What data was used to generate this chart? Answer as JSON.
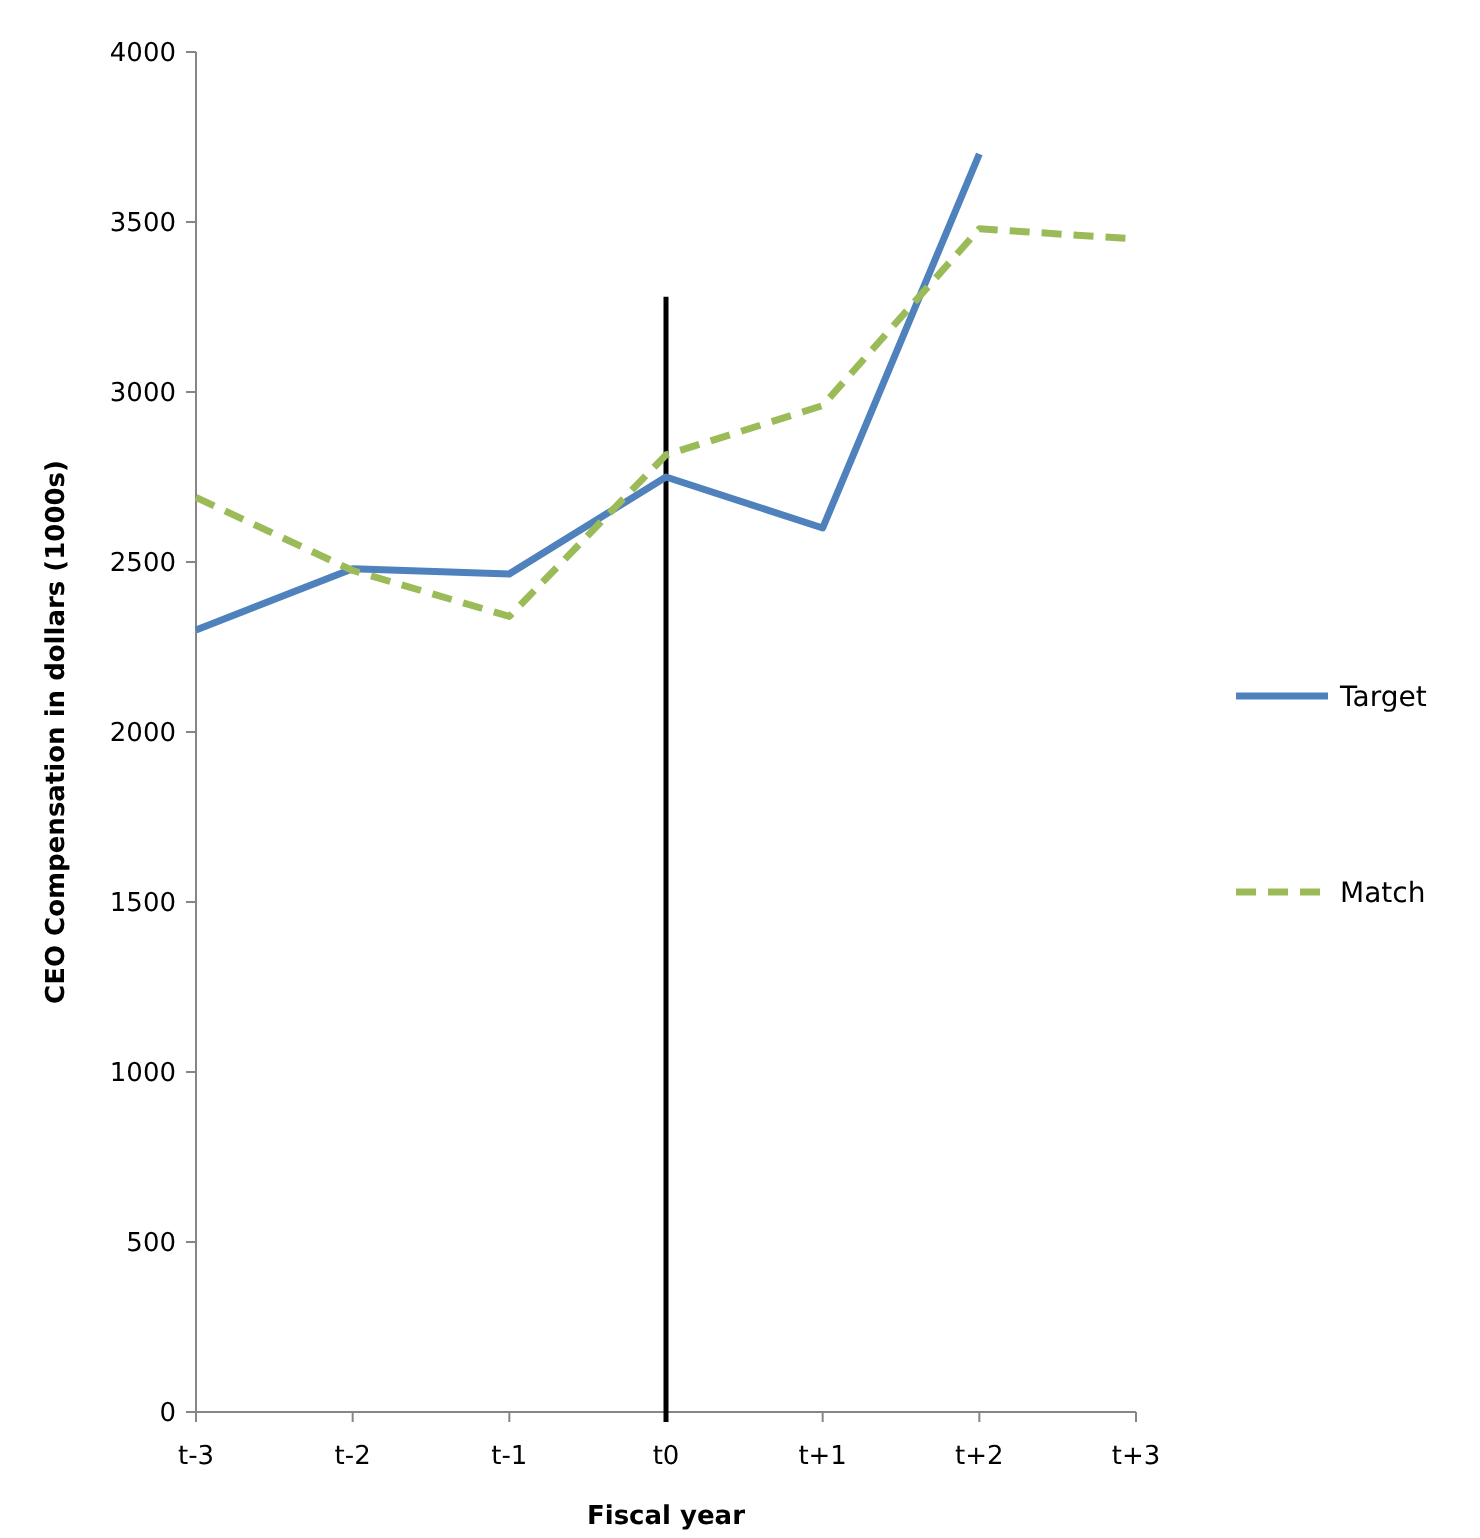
{
  "chart_data": {
    "type": "line",
    "xlabel": "Fiscal year",
    "ylabel": "CEO Compensation in dollars (1000s)",
    "categories": [
      "t-3",
      "t-2",
      "t-1",
      "t0",
      "t+1",
      "t+2",
      "t+3"
    ],
    "series": [
      {
        "name": "Target",
        "color": "#4f81bd",
        "line_style": "solid",
        "values": [
          2300,
          2480,
          2465,
          2750,
          2600,
          3700,
          null
        ]
      },
      {
        "name": "Match",
        "color": "#9bbb59",
        "line_style": "dashed",
        "values": [
          2690,
          2475,
          2340,
          2815,
          2960,
          3480,
          3450
        ]
      }
    ],
    "ylim": [
      0,
      4000
    ],
    "yticks": [
      0,
      500,
      1000,
      1500,
      2000,
      2500,
      3000,
      3500,
      4000
    ],
    "ref_lines": [
      {
        "axis": "x",
        "value": "t0",
        "color": "#000000"
      }
    ],
    "grid": false,
    "legend": "right"
  }
}
